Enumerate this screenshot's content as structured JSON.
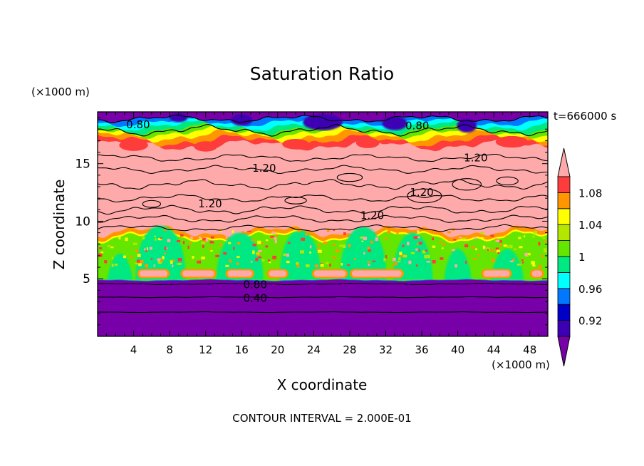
{
  "chart_data": {
    "type": "heatmap",
    "title": "Saturation Ratio",
    "time_label": "t=666000 s",
    "xlabel": "X coordinate",
    "ylabel": "Z coordinate",
    "x_unit": "(×1000 m)",
    "y_unit": "(×1000 m)",
    "xlim": [
      0,
      50
    ],
    "ylim": [
      0,
      19.5
    ],
    "x_ticks": [
      4,
      8,
      12,
      16,
      20,
      24,
      28,
      32,
      36,
      40,
      44,
      48
    ],
    "y_ticks": [
      5,
      10,
      15
    ],
    "footer": "CONTOUR INTERVAL = 2.000E-01",
    "colorbar": {
      "labels": [
        "0.92",
        "0.96",
        "1",
        "1.04",
        "1.08"
      ],
      "label_values": [
        0.92,
        0.96,
        1.0,
        1.04,
        1.08
      ],
      "boundaries": [
        0.9,
        0.92,
        0.94,
        0.96,
        0.98,
        1.0,
        1.02,
        1.04,
        1.06,
        1.08,
        1.1
      ],
      "colors": [
        "#7800a8",
        "#3c00b4",
        "#0000c8",
        "#0078ff",
        "#00ffff",
        "#00e882",
        "#64e600",
        "#b4e600",
        "#ffff00",
        "#ff9600",
        "#ff3c3c",
        "#ffaaaa"
      ]
    },
    "contour_labels": [
      {
        "text": "0.80",
        "x": 4.5,
        "z": 18.4
      },
      {
        "text": "0.80",
        "x": 35.5,
        "z": 18.3
      },
      {
        "text": "1.20",
        "x": 18.5,
        "z": 14.6
      },
      {
        "text": "1.20",
        "x": 42.0,
        "z": 15.5
      },
      {
        "text": "1.20",
        "x": 36.0,
        "z": 12.5
      },
      {
        "text": "1.20",
        "x": 12.5,
        "z": 11.5
      },
      {
        "text": "1.20",
        "x": 30.5,
        "z": 10.5
      },
      {
        "text": "0.80",
        "x": 17.5,
        "z": 4.5
      },
      {
        "text": "0.40",
        "x": 17.5,
        "z": 3.3
      }
    ]
  }
}
